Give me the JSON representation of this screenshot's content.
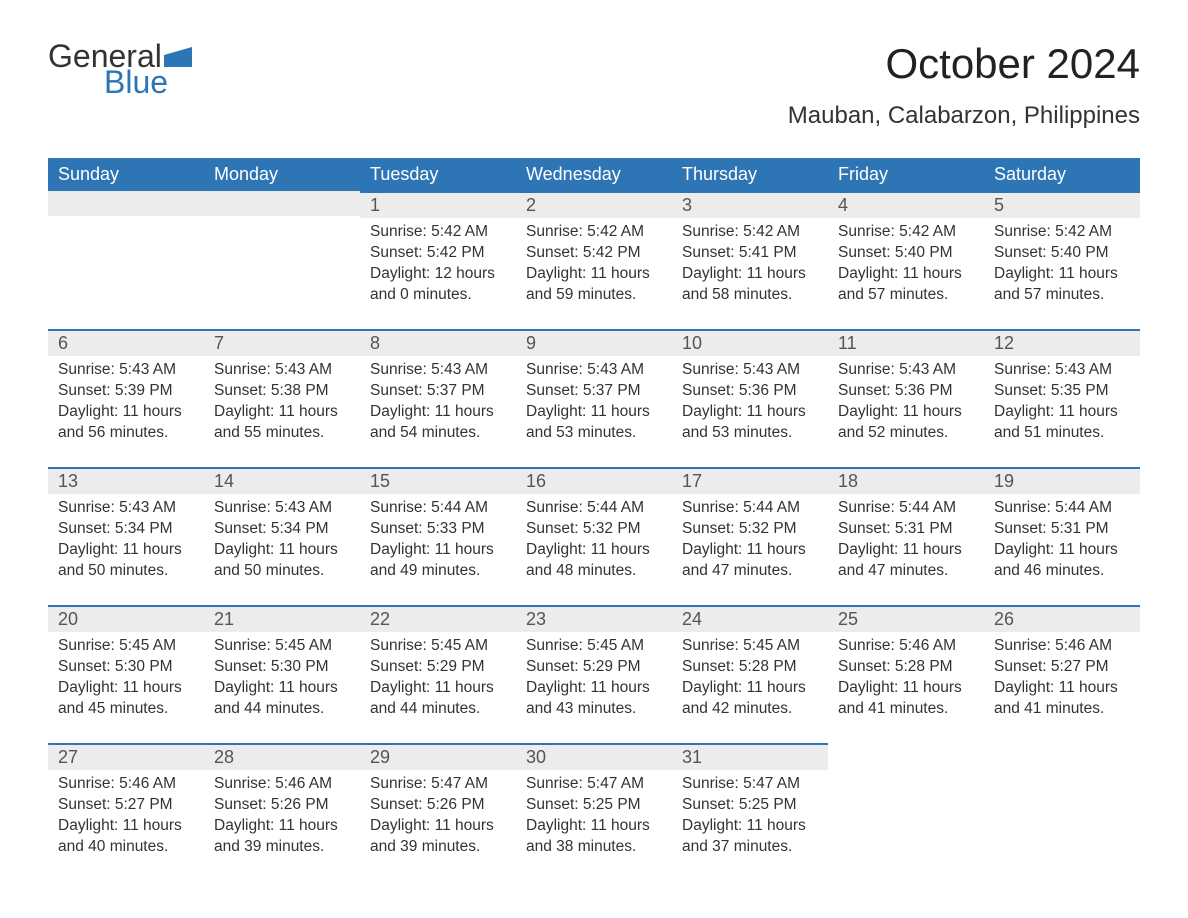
{
  "logo": {
    "general": "General",
    "blue": "Blue",
    "flag_color": "#2e75b6"
  },
  "title": "October 2024",
  "location": "Mauban, Calabarzon, Philippines",
  "accent_color": "#2e75b6",
  "header_bg": "#2e75b6",
  "daynum_bg": "#ececec",
  "text_color": "#333333",
  "weekdays": [
    "Sunday",
    "Monday",
    "Tuesday",
    "Wednesday",
    "Thursday",
    "Friday",
    "Saturday"
  ],
  "weeks": [
    [
      null,
      null,
      {
        "n": "1",
        "sunrise": "5:42 AM",
        "sunset": "5:42 PM",
        "dl": "12 hours and 0 minutes."
      },
      {
        "n": "2",
        "sunrise": "5:42 AM",
        "sunset": "5:42 PM",
        "dl": "11 hours and 59 minutes."
      },
      {
        "n": "3",
        "sunrise": "5:42 AM",
        "sunset": "5:41 PM",
        "dl": "11 hours and 58 minutes."
      },
      {
        "n": "4",
        "sunrise": "5:42 AM",
        "sunset": "5:40 PM",
        "dl": "11 hours and 57 minutes."
      },
      {
        "n": "5",
        "sunrise": "5:42 AM",
        "sunset": "5:40 PM",
        "dl": "11 hours and 57 minutes."
      }
    ],
    [
      {
        "n": "6",
        "sunrise": "5:43 AM",
        "sunset": "5:39 PM",
        "dl": "11 hours and 56 minutes."
      },
      {
        "n": "7",
        "sunrise": "5:43 AM",
        "sunset": "5:38 PM",
        "dl": "11 hours and 55 minutes."
      },
      {
        "n": "8",
        "sunrise": "5:43 AM",
        "sunset": "5:37 PM",
        "dl": "11 hours and 54 minutes."
      },
      {
        "n": "9",
        "sunrise": "5:43 AM",
        "sunset": "5:37 PM",
        "dl": "11 hours and 53 minutes."
      },
      {
        "n": "10",
        "sunrise": "5:43 AM",
        "sunset": "5:36 PM",
        "dl": "11 hours and 53 minutes."
      },
      {
        "n": "11",
        "sunrise": "5:43 AM",
        "sunset": "5:36 PM",
        "dl": "11 hours and 52 minutes."
      },
      {
        "n": "12",
        "sunrise": "5:43 AM",
        "sunset": "5:35 PM",
        "dl": "11 hours and 51 minutes."
      }
    ],
    [
      {
        "n": "13",
        "sunrise": "5:43 AM",
        "sunset": "5:34 PM",
        "dl": "11 hours and 50 minutes."
      },
      {
        "n": "14",
        "sunrise": "5:43 AM",
        "sunset": "5:34 PM",
        "dl": "11 hours and 50 minutes."
      },
      {
        "n": "15",
        "sunrise": "5:44 AM",
        "sunset": "5:33 PM",
        "dl": "11 hours and 49 minutes."
      },
      {
        "n": "16",
        "sunrise": "5:44 AM",
        "sunset": "5:32 PM",
        "dl": "11 hours and 48 minutes."
      },
      {
        "n": "17",
        "sunrise": "5:44 AM",
        "sunset": "5:32 PM",
        "dl": "11 hours and 47 minutes."
      },
      {
        "n": "18",
        "sunrise": "5:44 AM",
        "sunset": "5:31 PM",
        "dl": "11 hours and 47 minutes."
      },
      {
        "n": "19",
        "sunrise": "5:44 AM",
        "sunset": "5:31 PM",
        "dl": "11 hours and 46 minutes."
      }
    ],
    [
      {
        "n": "20",
        "sunrise": "5:45 AM",
        "sunset": "5:30 PM",
        "dl": "11 hours and 45 minutes."
      },
      {
        "n": "21",
        "sunrise": "5:45 AM",
        "sunset": "5:30 PM",
        "dl": "11 hours and 44 minutes."
      },
      {
        "n": "22",
        "sunrise": "5:45 AM",
        "sunset": "5:29 PM",
        "dl": "11 hours and 44 minutes."
      },
      {
        "n": "23",
        "sunrise": "5:45 AM",
        "sunset": "5:29 PM",
        "dl": "11 hours and 43 minutes."
      },
      {
        "n": "24",
        "sunrise": "5:45 AM",
        "sunset": "5:28 PM",
        "dl": "11 hours and 42 minutes."
      },
      {
        "n": "25",
        "sunrise": "5:46 AM",
        "sunset": "5:28 PM",
        "dl": "11 hours and 41 minutes."
      },
      {
        "n": "26",
        "sunrise": "5:46 AM",
        "sunset": "5:27 PM",
        "dl": "11 hours and 41 minutes."
      }
    ],
    [
      {
        "n": "27",
        "sunrise": "5:46 AM",
        "sunset": "5:27 PM",
        "dl": "11 hours and 40 minutes."
      },
      {
        "n": "28",
        "sunrise": "5:46 AM",
        "sunset": "5:26 PM",
        "dl": "11 hours and 39 minutes."
      },
      {
        "n": "29",
        "sunrise": "5:47 AM",
        "sunset": "5:26 PM",
        "dl": "11 hours and 39 minutes."
      },
      {
        "n": "30",
        "sunrise": "5:47 AM",
        "sunset": "5:25 PM",
        "dl": "11 hours and 38 minutes."
      },
      {
        "n": "31",
        "sunrise": "5:47 AM",
        "sunset": "5:25 PM",
        "dl": "11 hours and 37 minutes."
      },
      null,
      null
    ]
  ],
  "labels": {
    "sunrise": "Sunrise: ",
    "sunset": "Sunset: ",
    "daylight": "Daylight: "
  }
}
